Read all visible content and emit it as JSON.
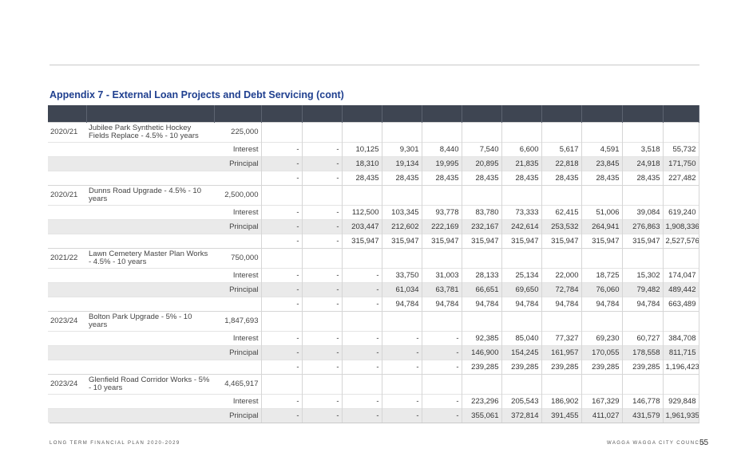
{
  "title": "Appendix 7 - External Loan Projects and Debt Servicing (cont)",
  "footer": {
    "left": "LONG TERM FINANCIAL PLAN 2020-2029",
    "right": "WAGGA WAGGA CITY COUNCIL",
    "page": "55"
  },
  "projects": [
    {
      "year": "2020/21",
      "name": "Jubilee Park Synthetic Hockey Fields Replace - 4.5% - 10 years",
      "amount": "225,000",
      "rows": [
        {
          "label": "Interest",
          "values": [
            "-",
            "-",
            "10,125",
            "9,301",
            "8,440",
            "7,540",
            "6,600",
            "5,617",
            "4,591",
            "3,518",
            "55,732"
          ]
        },
        {
          "label": "Principal",
          "values": [
            "-",
            "-",
            "18,310",
            "19,134",
            "19,995",
            "20,895",
            "21,835",
            "22,818",
            "23,845",
            "24,918",
            "171,750"
          ]
        },
        {
          "label": "",
          "values": [
            "-",
            "-",
            "28,435",
            "28,435",
            "28,435",
            "28,435",
            "28,435",
            "28,435",
            "28,435",
            "28,435",
            "227,482"
          ]
        }
      ]
    },
    {
      "year": "2020/21",
      "name": "Dunns Road Upgrade - 4.5% - 10 years",
      "amount": "2,500,000",
      "rows": [
        {
          "label": "Interest",
          "values": [
            "-",
            "-",
            "112,500",
            "103,345",
            "93,778",
            "83,780",
            "73,333",
            "62,415",
            "51,006",
            "39,084",
            "619,240"
          ]
        },
        {
          "label": "Principal",
          "values": [
            "-",
            "-",
            "203,447",
            "212,602",
            "222,169",
            "232,167",
            "242,614",
            "253,532",
            "264,941",
            "276,863",
            "1,908,336"
          ]
        },
        {
          "label": "",
          "values": [
            "-",
            "-",
            "315,947",
            "315,947",
            "315,947",
            "315,947",
            "315,947",
            "315,947",
            "315,947",
            "315,947",
            "2,527,576"
          ]
        }
      ]
    },
    {
      "year": "2021/22",
      "name": "Lawn Cemetery Master Plan Works - 4.5% - 10 years",
      "amount": "750,000",
      "rows": [
        {
          "label": "Interest",
          "values": [
            "-",
            "-",
            "-",
            "33,750",
            "31,003",
            "28,133",
            "25,134",
            "22,000",
            "18,725",
            "15,302",
            "174,047"
          ]
        },
        {
          "label": "Principal",
          "values": [
            "-",
            "-",
            "-",
            "61,034",
            "63,781",
            "66,651",
            "69,650",
            "72,784",
            "76,060",
            "79,482",
            "489,442"
          ]
        },
        {
          "label": "",
          "values": [
            "-",
            "-",
            "-",
            "94,784",
            "94,784",
            "94,784",
            "94,784",
            "94,784",
            "94,784",
            "94,784",
            "663,489"
          ]
        }
      ]
    },
    {
      "year": "2023/24",
      "name": "Bolton Park Upgrade - 5% - 10 years",
      "amount": "1,847,693",
      "rows": [
        {
          "label": "Interest",
          "values": [
            "-",
            "-",
            "-",
            "-",
            "-",
            "92,385",
            "85,040",
            "77,327",
            "69,230",
            "60,727",
            "384,708"
          ]
        },
        {
          "label": "Principal",
          "values": [
            "-",
            "-",
            "-",
            "-",
            "-",
            "146,900",
            "154,245",
            "161,957",
            "170,055",
            "178,558",
            "811,715"
          ]
        },
        {
          "label": "",
          "values": [
            "-",
            "-",
            "-",
            "-",
            "-",
            "239,285",
            "239,285",
            "239,285",
            "239,285",
            "239,285",
            "1,196,423"
          ]
        }
      ]
    },
    {
      "year": "2023/24",
      "name": "Glenfield Road Corridor Works - 5% - 10 years",
      "amount": "4,465,917",
      "rows": [
        {
          "label": "Interest",
          "values": [
            "-",
            "-",
            "-",
            "-",
            "-",
            "223,296",
            "205,543",
            "186,902",
            "167,329",
            "146,778",
            "929,848"
          ]
        },
        {
          "label": "Principal",
          "values": [
            "-",
            "-",
            "-",
            "-",
            "-",
            "355,061",
            "372,814",
            "391,455",
            "411,027",
            "431,579",
            "1,961,935"
          ]
        }
      ]
    }
  ]
}
